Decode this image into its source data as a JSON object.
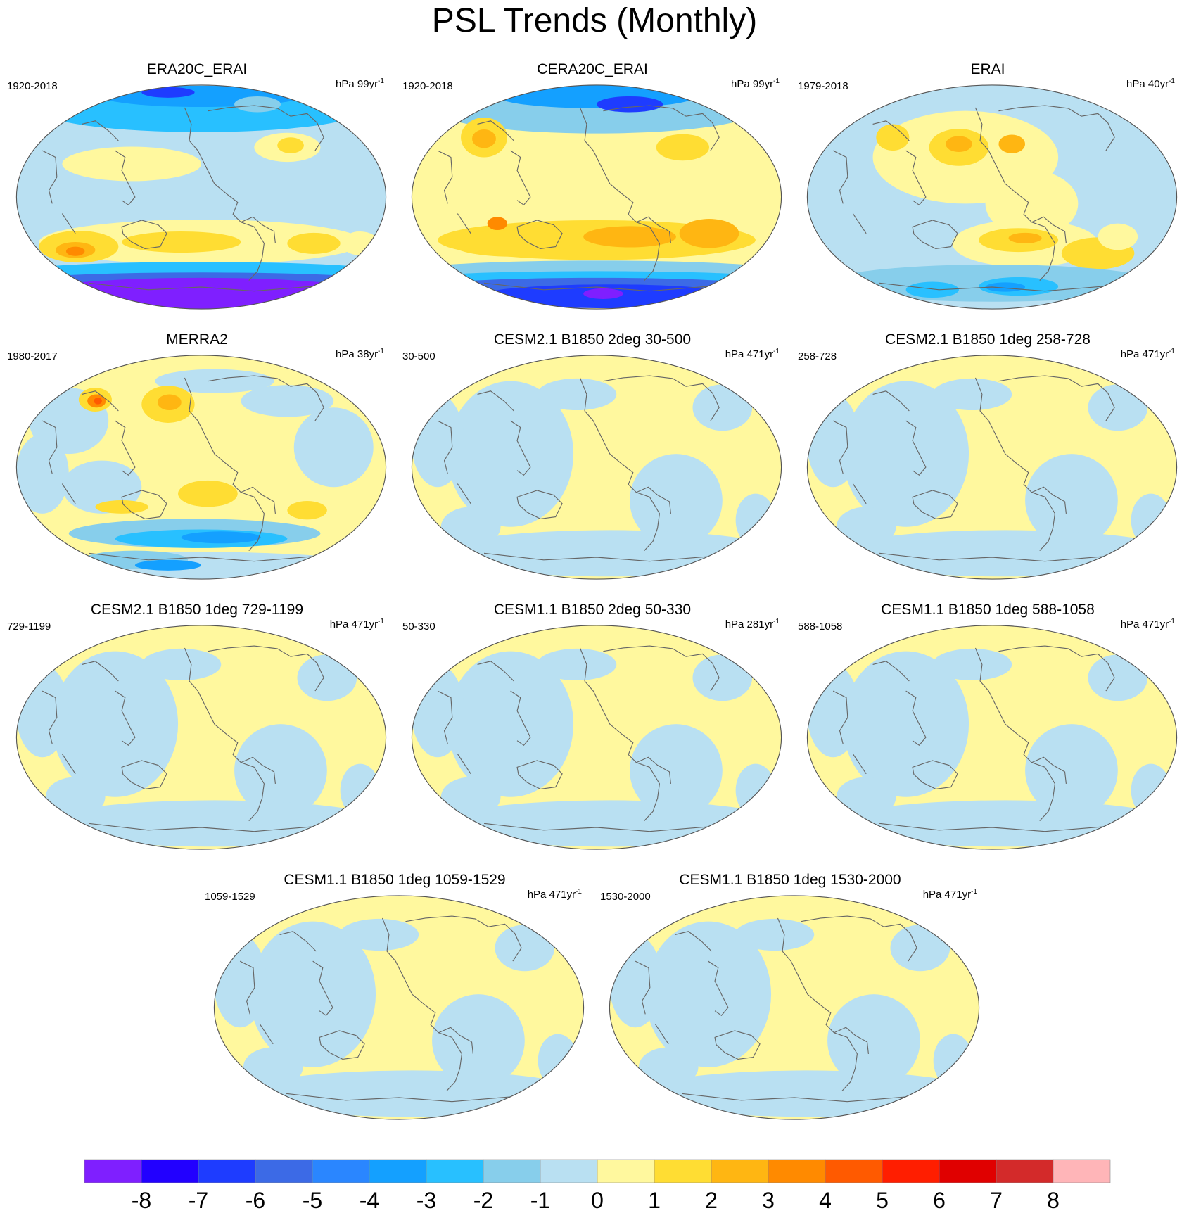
{
  "title": "PSL Trends (Monthly)",
  "colors": {
    "coast": "#666666",
    "border": "#555555"
  },
  "panels": [
    {
      "title": "ERA20C_ERAI",
      "period": "1920-2018",
      "units": "hPa 99yr",
      "units_exp": "-1",
      "pattern": "era20c"
    },
    {
      "title": "CERA20C_ERAI",
      "period": "1920-2018",
      "units": "hPa 99yr",
      "units_exp": "-1",
      "pattern": "cera20c"
    },
    {
      "title": "ERAI",
      "period": "1979-2018",
      "units": "hPa 40yr",
      "units_exp": "-1",
      "pattern": "erai"
    },
    {
      "title": "MERRA2",
      "period": "1980-2017",
      "units": "hPa 38yr",
      "units_exp": "-1",
      "pattern": "merra2"
    },
    {
      "title": "CESM2.1 B1850 2deg 30-500",
      "period": "30-500",
      "units": "hPa 471yr",
      "units_exp": "-1",
      "pattern": "model"
    },
    {
      "title": "CESM2.1 B1850 1deg 258-728",
      "period": "258-728",
      "units": "hPa 471yr",
      "units_exp": "-1",
      "pattern": "model"
    },
    {
      "title": "CESM2.1 B1850 1deg 729-1199",
      "period": "729-1199",
      "units": "hPa 471yr",
      "units_exp": "-1",
      "pattern": "model"
    },
    {
      "title": "CESM1.1 B1850 2deg 50-330",
      "period": "50-330",
      "units": "hPa 281yr",
      "units_exp": "-1",
      "pattern": "model"
    },
    {
      "title": "CESM1.1 B1850 1deg 588-1058",
      "period": "588-1058",
      "units": "hPa 471yr",
      "units_exp": "-1",
      "pattern": "model"
    },
    {
      "title": "CESM1.1 B1850 1deg 1059-1529",
      "period": "1059-1529",
      "units": "hPa 471yr",
      "units_exp": "-1",
      "pattern": "model"
    },
    {
      "title": "CESM1.1 B1850 1deg 1530-2000",
      "period": "1530-2000",
      "units": "hPa 471yr",
      "units_exp": "-1",
      "pattern": "model"
    }
  ],
  "colorbar": {
    "colors": [
      "#7f1fff",
      "#2200ff",
      "#1e3cff",
      "#3c6ae6",
      "#2a86ff",
      "#14a0ff",
      "#28c0ff",
      "#87ceeb",
      "#b9e0f2",
      "#fff89e",
      "#ffdd33",
      "#ffb612",
      "#ff8a00",
      "#ff5a00",
      "#ff1e00",
      "#e00000",
      "#d32a2a",
      "#ffb5b8"
    ],
    "labels": [
      "-8",
      "-7",
      "-6",
      "-5",
      "-4",
      "-3",
      "-2",
      "-1",
      "0",
      "1",
      "2",
      "3",
      "4",
      "5",
      "6",
      "7",
      "8"
    ]
  }
}
